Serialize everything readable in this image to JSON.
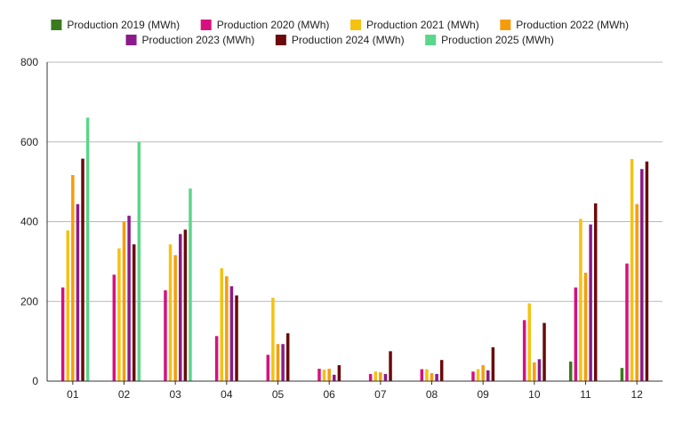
{
  "chart_data": {
    "type": "bar",
    "title": "",
    "xlabel": "",
    "ylabel": "",
    "categories": [
      "01",
      "02",
      "03",
      "04",
      "05",
      "06",
      "07",
      "08",
      "09",
      "10",
      "11",
      "12"
    ],
    "ylim": [
      0,
      800
    ],
    "yticks": [
      0,
      200,
      400,
      600,
      800
    ],
    "grid": true,
    "legend_position": "top-center",
    "series": [
      {
        "name": "Production 2019 (MWh)",
        "color": "#3a7a1e",
        "values": [
          null,
          null,
          null,
          null,
          null,
          null,
          null,
          null,
          null,
          null,
          49,
          33
        ]
      },
      {
        "name": "Production 2020 (MWh)",
        "color": "#d6117f",
        "values": [
          235,
          267,
          228,
          113,
          66,
          31,
          18,
          30,
          24,
          153,
          235,
          295
        ]
      },
      {
        "name": "Production 2021 (MWh)",
        "color": "#f5c211",
        "values": [
          378,
          333,
          343,
          283,
          209,
          29,
          24,
          30,
          30,
          195,
          407,
          557
        ]
      },
      {
        "name": "Production 2022 (MWh)",
        "color": "#f59c0e",
        "values": [
          517,
          400,
          316,
          263,
          93,
          31,
          22,
          20,
          40,
          47,
          272,
          444
        ]
      },
      {
        "name": "Production 2023 (MWh)",
        "color": "#8b1a8b",
        "values": [
          444,
          415,
          369,
          238,
          93,
          16,
          18,
          18,
          27,
          55,
          393,
          532
        ]
      },
      {
        "name": "Production 2024 (MWh)",
        "color": "#6b0a0a",
        "values": [
          558,
          343,
          380,
          215,
          120,
          40,
          75,
          53,
          85,
          146,
          446,
          551
        ]
      },
      {
        "name": "Production 2025 (MWh)",
        "color": "#5cd68a",
        "values": [
          661,
          600,
          483,
          null,
          null,
          null,
          null,
          null,
          null,
          null,
          null,
          null
        ]
      }
    ]
  }
}
